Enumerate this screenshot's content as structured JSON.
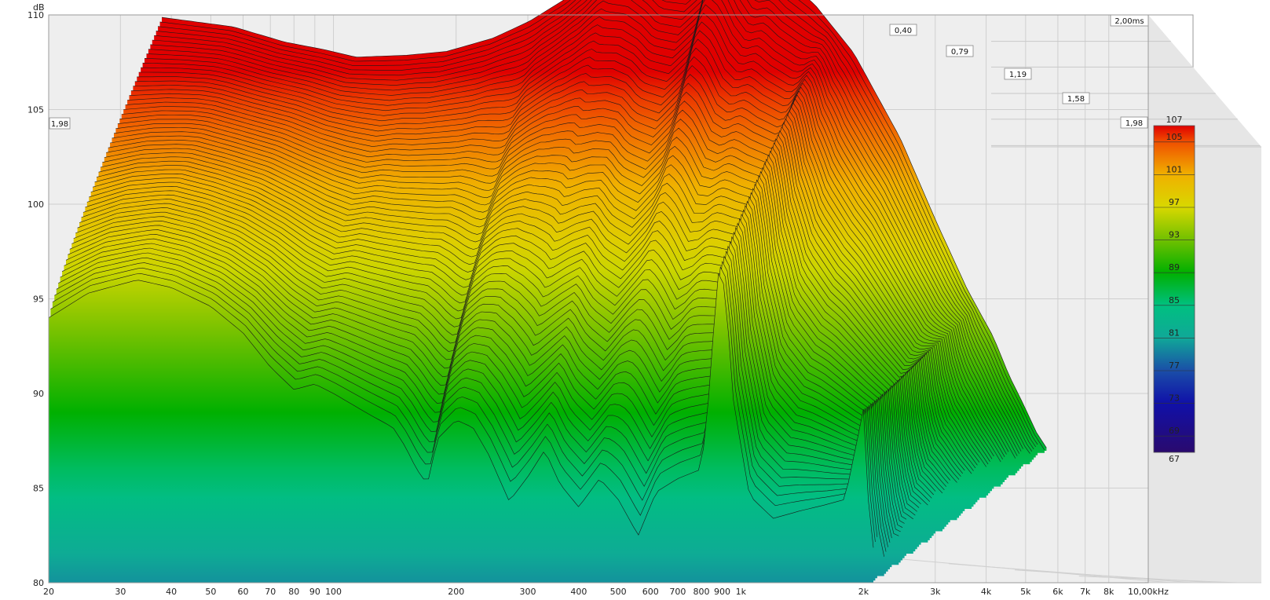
{
  "chart_data": {
    "type": "waterfall",
    "y_unit": "dB",
    "x_axis": {
      "scale": "log",
      "range": [
        20,
        10000
      ],
      "ticks": [
        {
          "v": 20,
          "label": "20"
        },
        {
          "v": 30,
          "label": "30"
        },
        {
          "v": 40,
          "label": "40"
        },
        {
          "v": 50,
          "label": "50"
        },
        {
          "v": 60,
          "label": "60"
        },
        {
          "v": 70,
          "label": "70"
        },
        {
          "v": 80,
          "label": "80"
        },
        {
          "v": 90,
          "label": "90"
        },
        {
          "v": 100,
          "label": "100"
        },
        {
          "v": 200,
          "label": "200"
        },
        {
          "v": 300,
          "label": "300"
        },
        {
          "v": 400,
          "label": "400"
        },
        {
          "v": 500,
          "label": "500"
        },
        {
          "v": 600,
          "label": "600"
        },
        {
          "v": 700,
          "label": "700"
        },
        {
          "v": 800,
          "label": "800"
        },
        {
          "v": 900,
          "label": "900"
        },
        {
          "v": 1000,
          "label": "1k"
        },
        {
          "v": 2000,
          "label": "2k"
        },
        {
          "v": 3000,
          "label": "3k"
        },
        {
          "v": 4000,
          "label": "4k"
        },
        {
          "v": 5000,
          "label": "5k"
        },
        {
          "v": 6000,
          "label": "6k"
        },
        {
          "v": 7000,
          "label": "7k"
        },
        {
          "v": 8000,
          "label": "8k"
        },
        {
          "v": 10000,
          "label": "10,00kHz"
        }
      ]
    },
    "y_axis": {
      "range": [
        80,
        110
      ],
      "ticks": [
        {
          "v": 80,
          "label": "80"
        },
        {
          "v": 85,
          "label": "85"
        },
        {
          "v": 90,
          "label": "90"
        },
        {
          "v": 95,
          "label": "95"
        },
        {
          "v": 100,
          "label": "100"
        },
        {
          "v": 105,
          "label": "105"
        },
        {
          "v": 110,
          "label": "110"
        }
      ]
    },
    "time_axis": {
      "unit": "ms",
      "range": [
        0,
        2.0
      ],
      "ticks": [
        {
          "v": 0.4,
          "label": "0,40"
        },
        {
          "v": 0.79,
          "label": "0,79"
        },
        {
          "v": 1.19,
          "label": "1,19"
        },
        {
          "v": 1.58,
          "label": "1,58"
        },
        {
          "v": 1.98,
          "label": "1,98"
        },
        {
          "v": 2.0,
          "label": "2,00ms"
        }
      ],
      "left_wall_label": "1,98"
    },
    "color_scale": {
      "range": [
        67,
        107
      ],
      "ticks": [
        {
          "v": 107,
          "label": "107"
        },
        {
          "v": 105,
          "label": "105"
        },
        {
          "v": 101,
          "label": "101"
        },
        {
          "v": 97,
          "label": "97"
        },
        {
          "v": 93,
          "label": "93"
        },
        {
          "v": 89,
          "label": "89"
        },
        {
          "v": 85,
          "label": "85"
        },
        {
          "v": 81,
          "label": "81"
        },
        {
          "v": 77,
          "label": "77"
        },
        {
          "v": 73,
          "label": "73"
        },
        {
          "v": 69,
          "label": "69"
        },
        {
          "v": 67,
          "label": "67"
        }
      ],
      "stops": [
        {
          "v": 67,
          "color": "#2a0a6e"
        },
        {
          "v": 73,
          "color": "#1010a8"
        },
        {
          "v": 77,
          "color": "#1a4ea8"
        },
        {
          "v": 81,
          "color": "#10a898"
        },
        {
          "v": 85,
          "color": "#00c080"
        },
        {
          "v": 89,
          "color": "#00b000"
        },
        {
          "v": 93,
          "color": "#70c000"
        },
        {
          "v": 97,
          "color": "#d8d800"
        },
        {
          "v": 101,
          "color": "#f0b000"
        },
        {
          "v": 105,
          "color": "#f05000"
        },
        {
          "v": 107,
          "color": "#e00000"
        }
      ]
    },
    "slice_count": 60,
    "first_slice": [
      [
        20,
        94.0
      ],
      [
        25,
        95.3
      ],
      [
        33,
        96.0
      ],
      [
        40,
        95.6
      ],
      [
        50,
        94.6
      ],
      [
        60,
        93.2
      ],
      [
        70,
        91.4
      ],
      [
        80,
        90.2
      ],
      [
        90,
        90.5
      ],
      [
        100,
        90.0
      ],
      [
        120,
        89.0
      ],
      [
        140,
        88.2
      ],
      [
        150,
        87.2
      ],
      [
        160,
        86.0
      ],
      [
        170,
        85.2
      ],
      [
        180,
        87.6
      ],
      [
        200,
        88.6
      ],
      [
        220,
        88.2
      ],
      [
        240,
        86.8
      ],
      [
        270,
        84.3
      ],
      [
        300,
        85.6
      ],
      [
        330,
        87.0
      ],
      [
        360,
        85.2
      ],
      [
        400,
        84.0
      ],
      [
        450,
        85.5
      ],
      [
        500,
        84.4
      ],
      [
        560,
        82.5
      ],
      [
        620,
        84.8
      ],
      [
        700,
        85.5
      ],
      [
        800,
        86.0
      ],
      [
        840,
        90.5
      ],
      [
        870,
        95.5
      ],
      [
        890,
        97.0
      ],
      [
        920,
        94.8
      ],
      [
        960,
        89.5
      ],
      [
        1050,
        84.6
      ],
      [
        1200,
        83.4
      ],
      [
        1400,
        83.8
      ],
      [
        1600,
        84.1
      ],
      [
        1800,
        84.4
      ],
      [
        1950,
        88.0
      ],
      [
        2000,
        89.2
      ],
      [
        2060,
        84.0
      ],
      [
        2150,
        80.5
      ]
    ],
    "last_slice": [
      [
        20,
        102.9
      ],
      [
        30,
        102.4
      ],
      [
        40,
        101.6
      ],
      [
        50,
        101.2
      ],
      [
        60,
        100.8
      ],
      [
        80,
        100.9
      ],
      [
        100,
        101.1
      ],
      [
        130,
        101.8
      ],
      [
        160,
        102.7
      ],
      [
        200,
        104.0
      ],
      [
        230,
        105.2
      ],
      [
        260,
        106.7
      ],
      [
        300,
        106.3
      ],
      [
        350,
        104.9
      ],
      [
        400,
        104.8
      ],
      [
        450,
        105.8
      ],
      [
        480,
        108.6
      ],
      [
        520,
        108.0
      ],
      [
        560,
        106.5
      ],
      [
        600,
        105.3
      ],
      [
        650,
        105.4
      ],
      [
        700,
        104.6
      ],
      [
        800,
        103.6
      ],
      [
        1000,
        101.0
      ],
      [
        1300,
        96.5
      ],
      [
        1600,
        92.0
      ],
      [
        1900,
        88.5
      ],
      [
        2200,
        86.0
      ],
      [
        2400,
        84.0
      ],
      [
        2600,
        82.5
      ],
      [
        2800,
        81.0
      ],
      [
        3000,
        80.0
      ]
    ]
  }
}
